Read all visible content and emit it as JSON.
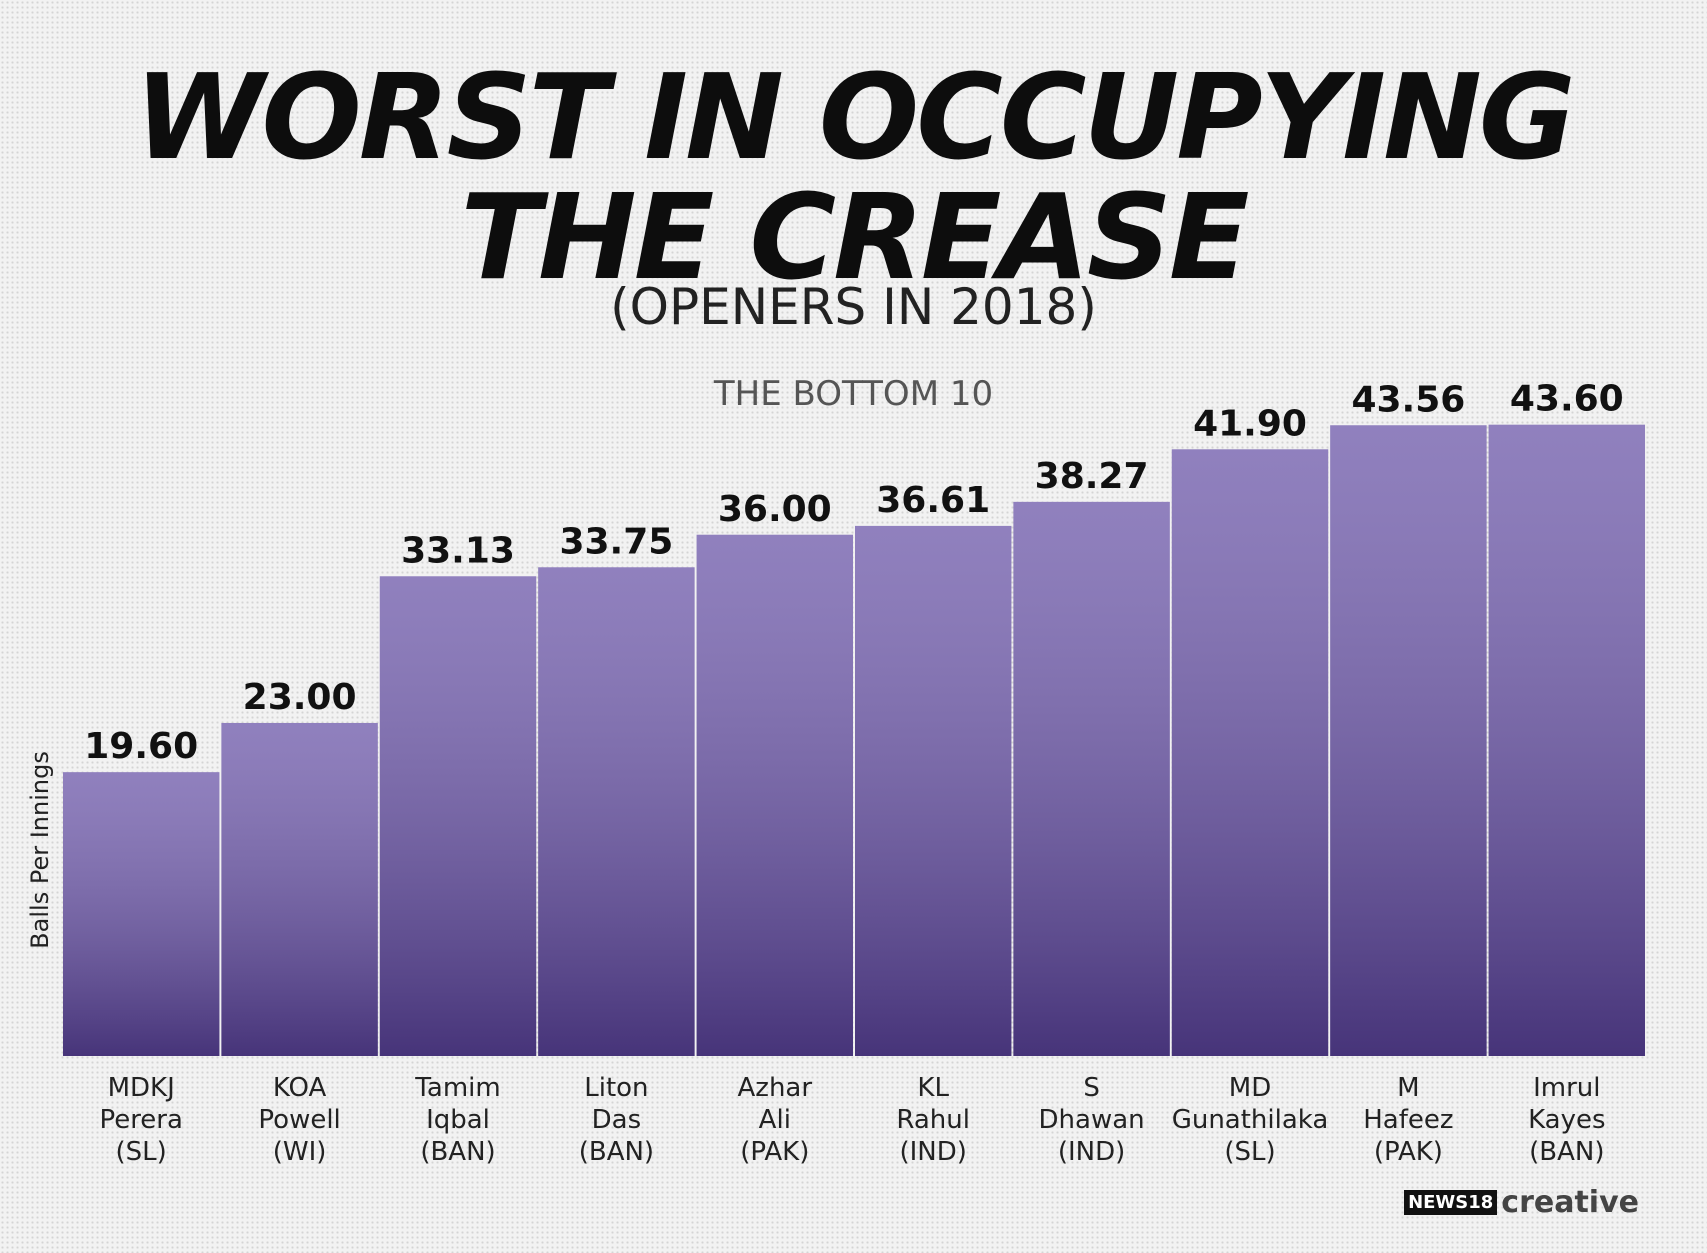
{
  "chart_data": {
    "type": "bar",
    "title": [
      "WORST IN OCCUPYING",
      "THE CREASE"
    ],
    "subtitle": "(OPENERS IN 2018)",
    "annotation": "THE BOTTOM 10",
    "y_label": "Balls Per Innings",
    "categories": [
      "MDKJ Perera (SL)",
      "KOA Powell (WI)",
      "Tamim Iqbal (BAN)",
      "Liton Das (BAN)",
      "Azhar Ali (PAK)",
      "KL Rahul (IND)",
      "S Dhawan (IND)",
      "MD Gunathilaka (SL)",
      "M Hafeez (PAK)",
      "Imrul Kayes (BAN)"
    ],
    "values": [
      19.6,
      23,
      33.13,
      33.75,
      36,
      36.61,
      38.27,
      41.9,
      43.56,
      43.6
    ],
    "value_labels": [
      "19.60",
      "23.00",
      "33.13",
      "33.75",
      "36.00",
      "36.61",
      "38.27",
      "41.90",
      "43.56",
      "43.60"
    ],
    "color": "#6b56a8",
    "ylim": [
      0,
      48
    ],
    "brand": [
      "NEWS18",
      "creative"
    ]
  }
}
